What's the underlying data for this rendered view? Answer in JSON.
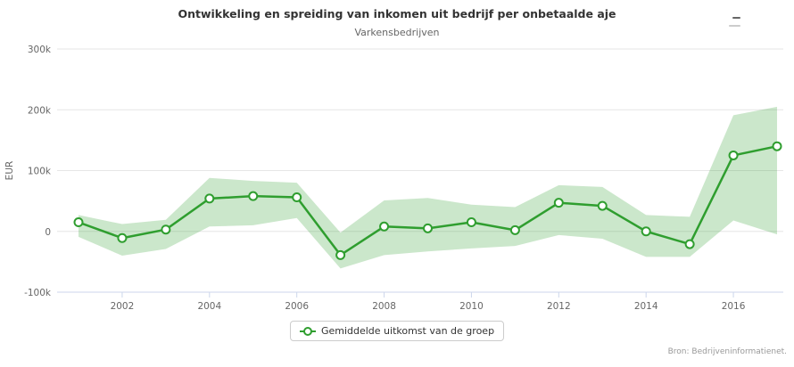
{
  "header": {
    "title": "Ontwikkeling en spreiding van inkomen uit bedrijf per onbetaalde aje",
    "subtitle": "Varkensbedrijven"
  },
  "legend": {
    "label": "Gemiddelde uitkomst van de groep"
  },
  "credits": {
    "text": "Bron: Bedrijveninformatienet."
  },
  "colors": {
    "line": "#2f9e2f",
    "band_fill": "rgba(47,158,47,0.25)",
    "grid": "#e6e6e6",
    "axis_line": "#ccd6eb",
    "tick_text": "#666666",
    "title_text": "#333333",
    "credit_text": "#999999",
    "marker_fill": "#ffffff"
  },
  "chart_data": {
    "type": "line",
    "title": "Ontwikkeling en spreiding van inkomen uit bedrijf per onbetaalde aje",
    "subtitle": "Varkensbedrijven",
    "xlabel": "",
    "ylabel": "EUR",
    "ylim": [
      -100000,
      300000
    ],
    "yticks": [
      -100000,
      0,
      100000,
      200000,
      300000
    ],
    "ytick_labels": [
      "-100k",
      "0",
      "100k",
      "200k",
      "300k"
    ],
    "x": [
      2001,
      2002,
      2003,
      2004,
      2005,
      2006,
      2007,
      2008,
      2009,
      2010,
      2011,
      2012,
      2013,
      2014,
      2015,
      2016,
      2017
    ],
    "xtick_years": [
      2002,
      2004,
      2006,
      2008,
      2010,
      2012,
      2014,
      2016
    ],
    "grid": true,
    "legend_position": "bottom",
    "series": [
      {
        "name": "Gemiddelde uitkomst van de groep",
        "values": [
          15000,
          -11000,
          3000,
          54000,
          58000,
          56000,
          -39000,
          8000,
          5000,
          15000,
          2000,
          47000,
          42000,
          0,
          -21000,
          125000,
          140000
        ]
      }
    ],
    "range_band": {
      "low": [
        -9000,
        -40000,
        -29000,
        8000,
        10000,
        22000,
        -61000,
        -39000,
        -33000,
        -28000,
        -24000,
        -6000,
        -12000,
        -42000,
        -42000,
        18000,
        -5000
      ],
      "high": [
        27000,
        12000,
        19000,
        88000,
        83000,
        80000,
        -2000,
        51000,
        55000,
        44000,
        40000,
        76000,
        73000,
        27000,
        24000,
        191000,
        205000
      ]
    }
  }
}
